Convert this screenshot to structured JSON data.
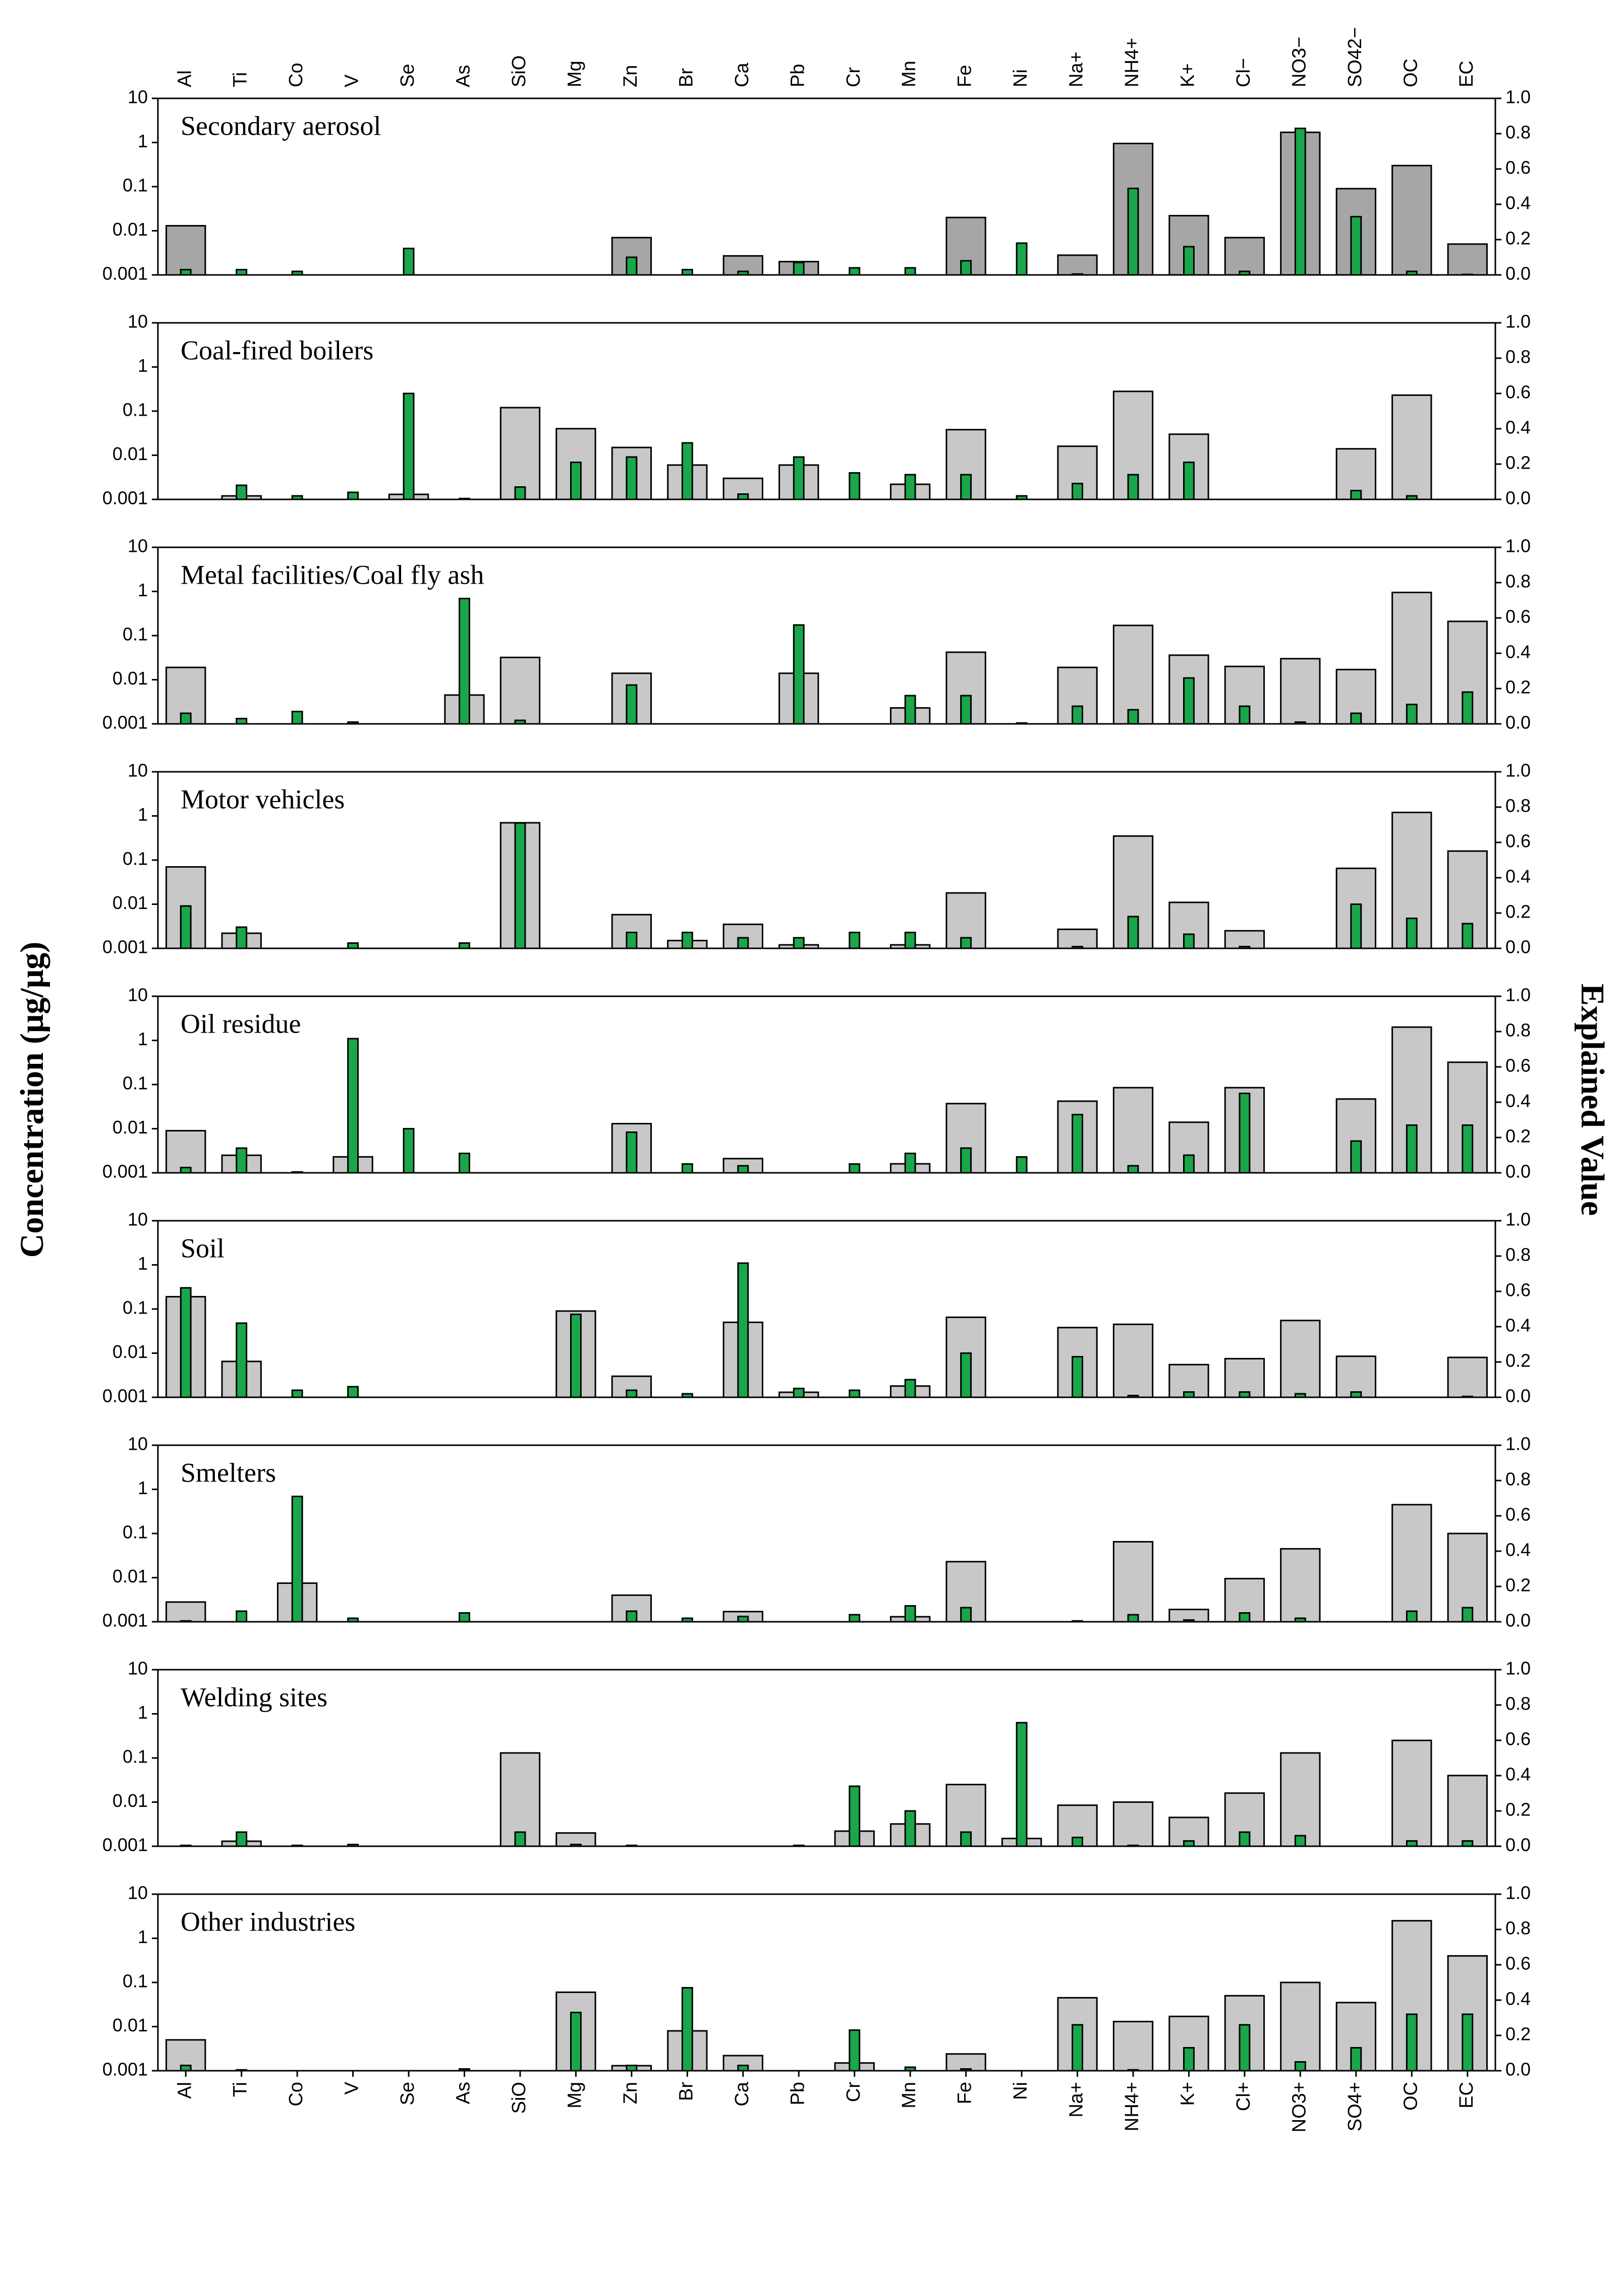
{
  "ylabel": "Concentration (μg/μg)",
  "y2label": "Explained Value",
  "chart_data": [
    {
      "type": "bar",
      "title": "Secondary aerosol",
      "categories": [
        "Al",
        "Ti",
        "Co",
        "V",
        "Se",
        "As",
        "SiO",
        "Mg",
        "Zn",
        "Br",
        "Ca",
        "Pb",
        "Cr",
        "Mn",
        "Fe",
        "Ni",
        "Na+",
        "NH4+",
        "K+",
        "Cl−",
        "NO3−",
        "SO42−",
        "OC",
        "EC"
      ],
      "log": true,
      "ylim": [
        0.001,
        10
      ],
      "yticks": [
        0.001,
        0.01,
        0.1,
        1,
        10
      ],
      "y2lim": [
        0,
        1
      ],
      "y2ticks": [
        {
          "value": 0,
          "label": "0.0"
        },
        0.2,
        0.4,
        0.6,
        0.8,
        {
          "value": 1,
          "label": "1.0"
        }
      ],
      "series": [
        {
          "color": "#a6a6a6",
          "values": [
            0.013,
            null,
            null,
            null,
            null,
            null,
            null,
            null,
            0.007,
            null,
            0.0027,
            0.002,
            null,
            null,
            0.02,
            null,
            0.0028,
            0.95,
            0.022,
            0.007,
            1.7,
            0.09,
            0.3,
            0.005
          ]
        },
        {
          "axis": "y2",
          "color": "#1aa64a",
          "values": [
            0.03,
            0.03,
            0.02,
            null,
            0.15,
            null,
            null,
            null,
            0.1,
            0.03,
            0.02,
            0.07,
            0.04,
            0.04,
            0.08,
            0.18,
            0.005,
            0.49,
            0.16,
            0.02,
            0.83,
            0.33,
            0.02,
            0.003
          ]
        }
      ]
    },
    {
      "type": "bar",
      "title": "Coal-fired boilers",
      "log": true,
      "ylim": [
        0.001,
        10
      ],
      "yticks": [
        0.001,
        0.01,
        0.1,
        1,
        10
      ],
      "y2lim": [
        0,
        1
      ],
      "y2ticks": [
        {
          "value": 0,
          "label": "0.0"
        },
        0.2,
        0.4,
        0.6,
        0.8,
        {
          "value": 1,
          "label": "1.0"
        }
      ],
      "series": [
        {
          "color": "#c8c8c8",
          "values": [
            null,
            0.0012,
            null,
            null,
            0.0013,
            null,
            0.12,
            0.04,
            0.015,
            0.006,
            0.003,
            0.006,
            null,
            0.0022,
            0.038,
            null,
            0.016,
            0.28,
            0.03,
            null,
            null,
            0.014,
            0.23,
            null
          ]
        },
        {
          "axis": "y2",
          "color": "#1aa64a",
          "values": [
            null,
            0.08,
            0.02,
            0.04,
            0.6,
            0.005,
            0.07,
            0.21,
            0.24,
            0.32,
            0.03,
            0.24,
            0.15,
            0.14,
            0.14,
            0.02,
            0.09,
            0.14,
            0.21,
            null,
            null,
            0.05,
            0.02,
            null
          ]
        }
      ]
    },
    {
      "type": "bar",
      "title": "Metal facilities/Coal fly ash",
      "log": true,
      "ylim": [
        0.001,
        10
      ],
      "yticks": [
        0.001,
        0.01,
        0.1,
        1,
        10
      ],
      "y2lim": [
        0,
        1
      ],
      "y2ticks": [
        {
          "value": 0,
          "label": "0.0"
        },
        0.2,
        0.4,
        0.6,
        0.8,
        {
          "value": 1,
          "label": "1.0"
        }
      ],
      "series": [
        {
          "color": "#c8c8c8",
          "values": [
            0.019,
            null,
            null,
            null,
            null,
            0.0045,
            0.032,
            null,
            0.014,
            null,
            null,
            0.014,
            null,
            0.0023,
            0.042,
            null,
            0.019,
            0.17,
            0.036,
            0.02,
            0.03,
            0.017,
            0.95,
            0.21
          ]
        },
        {
          "axis": "y2",
          "color": "#1aa64a",
          "values": [
            0.06,
            0.03,
            0.07,
            0.01,
            null,
            0.71,
            0.02,
            null,
            0.22,
            null,
            null,
            0.56,
            null,
            0.16,
            0.16,
            0.005,
            0.1,
            0.08,
            0.26,
            0.1,
            0.01,
            0.06,
            0.11,
            0.18
          ]
        }
      ]
    },
    {
      "type": "bar",
      "title": "Motor vehicles",
      "log": true,
      "ylim": [
        0.001,
        10
      ],
      "yticks": [
        0.001,
        0.01,
        0.1,
        1,
        10
      ],
      "y2lim": [
        0,
        1
      ],
      "y2ticks": [
        {
          "value": 0,
          "label": "0.0"
        },
        0.2,
        0.4,
        0.6,
        0.8,
        {
          "value": 1,
          "label": "1.0"
        }
      ],
      "series": [
        {
          "color": "#c8c8c8",
          "values": [
            0.07,
            0.0022,
            null,
            null,
            null,
            null,
            0.7,
            null,
            0.0058,
            0.0015,
            0.0035,
            0.0012,
            null,
            0.0012,
            0.018,
            null,
            0.0027,
            0.35,
            0.011,
            0.0025,
            null,
            0.065,
            1.2,
            0.16
          ]
        },
        {
          "axis": "y2",
          "color": "#1aa64a",
          "values": [
            0.24,
            0.12,
            null,
            0.03,
            null,
            0.03,
            0.71,
            null,
            0.09,
            0.09,
            0.06,
            0.06,
            0.09,
            0.09,
            0.06,
            null,
            0.01,
            0.18,
            0.08,
            0.01,
            null,
            0.25,
            0.17,
            0.14
          ]
        }
      ]
    },
    {
      "type": "bar",
      "title": "Oil residue",
      "log": true,
      "ylim": [
        0.001,
        10
      ],
      "yticks": [
        0.001,
        0.01,
        0.1,
        1,
        10
      ],
      "y2lim": [
        0,
        1
      ],
      "y2ticks": [
        {
          "value": 0,
          "label": "0.0"
        },
        0.2,
        0.4,
        0.6,
        0.8,
        {
          "value": 1,
          "label": "1.0"
        }
      ],
      "series": [
        {
          "color": "#c8c8c8",
          "values": [
            0.009,
            0.0025,
            null,
            0.0023,
            null,
            null,
            null,
            null,
            0.013,
            null,
            0.0021,
            null,
            null,
            0.0016,
            0.037,
            null,
            0.042,
            0.085,
            0.014,
            0.085,
            null,
            0.047,
            2.0,
            0.32
          ]
        },
        {
          "axis": "y2",
          "color": "#1aa64a",
          "values": [
            0.03,
            0.14,
            0.005,
            0.76,
            0.25,
            0.11,
            null,
            null,
            0.23,
            0.05,
            0.04,
            null,
            0.05,
            0.11,
            0.14,
            0.09,
            0.33,
            0.04,
            0.1,
            0.45,
            null,
            0.18,
            0.27,
            0.27
          ]
        }
      ]
    },
    {
      "type": "bar",
      "title": "Soil",
      "log": true,
      "ylim": [
        0.001,
        10
      ],
      "yticks": [
        0.001,
        0.01,
        0.1,
        1,
        10
      ],
      "y2lim": [
        0,
        1
      ],
      "y2ticks": [
        {
          "value": 0,
          "label": "0.0"
        },
        0.2,
        0.4,
        0.6,
        0.8,
        {
          "value": 1,
          "label": "1.0"
        }
      ],
      "series": [
        {
          "color": "#c8c8c8",
          "values": [
            0.19,
            0.0065,
            null,
            null,
            null,
            null,
            null,
            0.09,
            0.003,
            null,
            0.05,
            0.0013,
            null,
            0.0018,
            0.065,
            null,
            0.038,
            0.045,
            0.0055,
            0.0075,
            0.055,
            0.0085,
            null,
            0.008
          ]
        },
        {
          "axis": "y2",
          "color": "#1aa64a",
          "values": [
            0.62,
            0.42,
            0.04,
            0.06,
            null,
            null,
            null,
            0.47,
            0.04,
            0.02,
            0.76,
            0.05,
            0.04,
            0.1,
            0.25,
            null,
            0.23,
            0.01,
            0.03,
            0.03,
            0.02,
            0.03,
            null,
            0.005
          ]
        }
      ]
    },
    {
      "type": "bar",
      "title": "Smelters",
      "log": true,
      "ylim": [
        0.001,
        10
      ],
      "yticks": [
        0.001,
        0.01,
        0.1,
        1,
        10
      ],
      "y2lim": [
        0,
        1
      ],
      "y2ticks": [
        {
          "value": 0,
          "label": "0.0"
        },
        0.2,
        0.4,
        0.6,
        0.8,
        {
          "value": 1,
          "label": "1.0"
        }
      ],
      "series": [
        {
          "color": "#c8c8c8",
          "values": [
            0.0028,
            null,
            0.0075,
            null,
            null,
            null,
            null,
            null,
            0.004,
            null,
            0.0017,
            null,
            null,
            0.0013,
            0.023,
            null,
            null,
            0.065,
            0.0019,
            0.0095,
            0.045,
            null,
            0.45,
            0.1
          ]
        },
        {
          "axis": "y2",
          "color": "#1aa64a",
          "values": [
            0.005,
            0.06,
            0.71,
            0.02,
            null,
            0.05,
            null,
            null,
            0.06,
            0.02,
            0.03,
            null,
            0.04,
            0.09,
            0.08,
            null,
            0.005,
            0.04,
            0.01,
            0.05,
            0.02,
            null,
            0.06,
            0.08
          ]
        }
      ]
    },
    {
      "type": "bar",
      "title": "Welding sites",
      "log": true,
      "ylim": [
        0.001,
        10
      ],
      "yticks": [
        0.001,
        0.01,
        0.1,
        1,
        10
      ],
      "y2lim": [
        0,
        1
      ],
      "y2ticks": [
        {
          "value": 0,
          "label": "0.0"
        },
        0.2,
        0.4,
        0.6,
        0.8,
        {
          "value": 1,
          "label": "1.0"
        }
      ],
      "series": [
        {
          "color": "#c8c8c8",
          "values": [
            null,
            0.0013,
            null,
            null,
            null,
            null,
            0.13,
            0.002,
            null,
            null,
            null,
            null,
            0.0022,
            0.0032,
            0.025,
            0.0015,
            0.0085,
            0.01,
            0.0045,
            0.016,
            0.13,
            null,
            0.25,
            0.04
          ]
        },
        {
          "axis": "y2",
          "color": "#1aa64a",
          "values": [
            0.005,
            0.08,
            0.005,
            0.01,
            null,
            null,
            0.08,
            0.01,
            0.005,
            null,
            null,
            0.005,
            0.34,
            0.2,
            0.08,
            0.7,
            0.05,
            0.005,
            0.03,
            0.08,
            0.06,
            null,
            0.03,
            0.03
          ]
        }
      ]
    },
    {
      "type": "bar",
      "title": "Other industries",
      "categories": [
        "Al",
        "Ti",
        "Co",
        "V",
        "Se",
        "As",
        "SiO",
        "Mg",
        "Zn",
        "Br",
        "Ca",
        "Pb",
        "Cr",
        "Mn",
        "Fe",
        "Ni",
        "Na+",
        "NH4+",
        "K+",
        "Cl+",
        "NO3+",
        "SO4+",
        "OC",
        "EC"
      ],
      "log": true,
      "ylim": [
        0.001,
        10
      ],
      "yticks": [
        0.001,
        0.01,
        0.1,
        1,
        10
      ],
      "y2lim": [
        0,
        1
      ],
      "y2ticks": [
        {
          "value": 0,
          "label": "0.0"
        },
        0.2,
        0.4,
        0.6,
        0.8,
        {
          "value": 1,
          "label": "1.0"
        }
      ],
      "series": [
        {
          "color": "#c8c8c8",
          "values": [
            0.005,
            null,
            null,
            null,
            null,
            null,
            null,
            0.06,
            0.0013,
            0.008,
            0.0022,
            null,
            0.0015,
            null,
            0.0024,
            null,
            0.045,
            0.013,
            0.017,
            0.05,
            0.1,
            0.035,
            2.5,
            0.4
          ]
        },
        {
          "axis": "y2",
          "color": "#1aa64a",
          "values": [
            0.03,
            0.005,
            null,
            null,
            null,
            0.01,
            null,
            0.33,
            0.03,
            0.47,
            0.03,
            null,
            0.23,
            0.02,
            0.01,
            null,
            0.26,
            0.005,
            0.13,
            0.26,
            0.05,
            0.13,
            0.32,
            0.32
          ]
        }
      ]
    }
  ]
}
